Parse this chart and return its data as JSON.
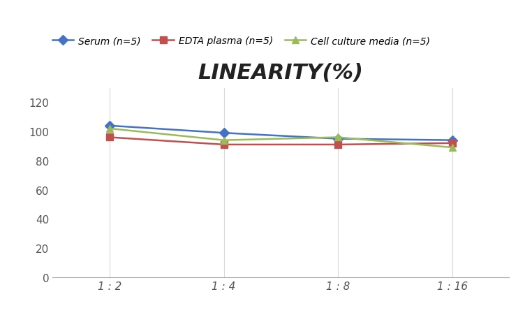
{
  "title": "LINEARITY(%)",
  "x_labels": [
    "1 : 2",
    "1 : 4",
    "1 : 8",
    "1 : 16"
  ],
  "x_positions": [
    0,
    1,
    2,
    3
  ],
  "series": [
    {
      "label": "Serum (n=5)",
      "values": [
        104,
        99,
        95,
        94
      ],
      "color": "#4472C4",
      "marker": "D",
      "linewidth": 1.8
    },
    {
      "label": "EDTA plasma (n=5)",
      "values": [
        96,
        91,
        91,
        92
      ],
      "color": "#C0504D",
      "marker": "s",
      "linewidth": 1.8
    },
    {
      "label": "Cell culture media (n=5)",
      "values": [
        102,
        94,
        96,
        89
      ],
      "color": "#9BBB59",
      "marker": "^",
      "linewidth": 1.8
    }
  ],
  "ylim": [
    0,
    130
  ],
  "yticks": [
    0,
    20,
    40,
    60,
    80,
    100,
    120
  ],
  "background_color": "#FFFFFF",
  "grid_color": "#D9D9D9",
  "title_fontsize": 22,
  "legend_fontsize": 10,
  "tick_fontsize": 11
}
